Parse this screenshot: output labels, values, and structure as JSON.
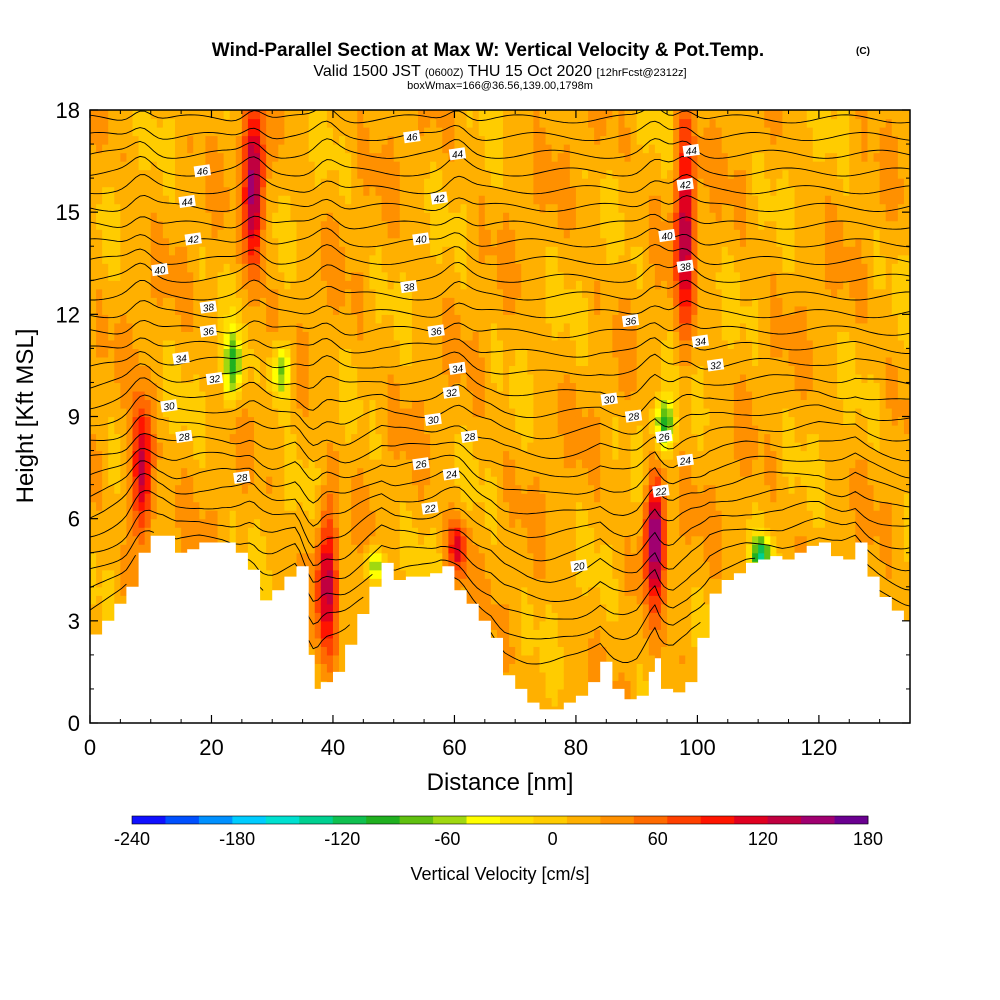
{
  "header": {
    "title": "Wind-Parallel Section at Max W: Vertical Velocity & Pot.Temp.",
    "copyright": "(C)",
    "valid_prefix": "Valid 1500 JST",
    "valid_utc": "(0600Z)",
    "valid_date": "THU 15 Oct 2020",
    "forecast": "[12hrFcst@2312z]",
    "boxinfo": "boxWmax=166@36.56,139.00,1798m"
  },
  "colors": {
    "terrain": "#ffffff",
    "contour": "#000000"
  },
  "chart_data": {
    "type": "heatmap",
    "xlabel": "Distance [nm]",
    "ylabel": "Height [Kft MSL]",
    "xlim": [
      0,
      135
    ],
    "ylim": [
      0,
      18
    ],
    "xticks": [
      0,
      20,
      40,
      60,
      80,
      100,
      120
    ],
    "yticks": [
      0,
      3,
      6,
      9,
      12,
      15,
      18
    ],
    "colorbar": {
      "label": "Vertical Velocity [cm/s]",
      "range": [
        -240,
        180
      ],
      "ticks": [
        -240,
        -180,
        -120,
        -60,
        0,
        60,
        120,
        180
      ],
      "colors": [
        "#1010ff",
        "#0050ff",
        "#0090ff",
        "#00ccff",
        "#00e0d0",
        "#00d090",
        "#10c050",
        "#20b020",
        "#60c010",
        "#a0d810",
        "#ffff00",
        "#ffe000",
        "#ffcc00",
        "#ffb000",
        "#ff9000",
        "#ff6a00",
        "#ff4000",
        "#ff1400",
        "#e00020",
        "#c00040",
        "#a00070",
        "#6a0090"
      ]
    },
    "terrain_profile": {
      "x": [
        0,
        2,
        4,
        6,
        8,
        10,
        12,
        14,
        16,
        18,
        20,
        22,
        24,
        26,
        28,
        30,
        32,
        34,
        36,
        37,
        38,
        40,
        42,
        44,
        46,
        48,
        50,
        52,
        54,
        56,
        58,
        60,
        62,
        64,
        66,
        68,
        70,
        72,
        74,
        76,
        78,
        80,
        82,
        84,
        86,
        88,
        90,
        92,
        93,
        94,
        96,
        98,
        100,
        102,
        104,
        106,
        108,
        110,
        112,
        114,
        116,
        118,
        120,
        122,
        124,
        126,
        128,
        130,
        132,
        134,
        135
      ],
      "height": [
        2.6,
        3.0,
        3.5,
        4.0,
        5.0,
        5.5,
        5.5,
        5.0,
        5.1,
        5.3,
        5.3,
        5.3,
        5.0,
        4.5,
        3.6,
        3.9,
        4.3,
        4.6,
        2.0,
        1.0,
        1.2,
        1.5,
        2.3,
        3.2,
        4.0,
        4.7,
        4.2,
        4.3,
        4.3,
        4.4,
        4.6,
        3.9,
        3.5,
        3.0,
        2.5,
        1.4,
        1.0,
        0.6,
        0.4,
        0.4,
        0.6,
        0.8,
        1.2,
        1.8,
        1.0,
        0.7,
        0.8,
        1.5,
        1.9,
        1.0,
        0.9,
        1.2,
        2.5,
        3.8,
        4.2,
        4.4,
        4.7,
        4.8,
        4.9,
        4.8,
        5.0,
        5.2,
        5.3,
        4.9,
        4.8,
        5.3,
        4.3,
        3.7,
        3.3,
        3.0,
        3.0
      ]
    },
    "updrafts": [
      {
        "x": 8.5,
        "ztop": 9.3,
        "zbot": 5.5,
        "peak_cms": 150
      },
      {
        "x": 27,
        "ztop": 18,
        "zbot": 13.5,
        "peak_cms": 170
      },
      {
        "x": 39,
        "ztop": 6.3,
        "zbot": 2.2,
        "peak_cms": 130
      },
      {
        "x": 60.5,
        "ztop": 6.0,
        "zbot": 4.3,
        "peak_cms": 110
      },
      {
        "x": 93,
        "ztop": 7.2,
        "zbot": 3.8,
        "peak_cms": 175
      },
      {
        "x": 98,
        "ztop": 18,
        "zbot": 11.5,
        "peak_cms": 130
      }
    ],
    "downdrafts": [
      {
        "x": 23.5,
        "ztop": 11.5,
        "zbot": 9.5,
        "peak_cms": -90
      },
      {
        "x": 31.5,
        "ztop": 11.2,
        "zbot": 9.5,
        "peak_cms": -80
      },
      {
        "x": 94.5,
        "ztop": 9.6,
        "zbot": 8.0,
        "peak_cms": -100
      },
      {
        "x": 110.5,
        "ztop": 5.5,
        "zbot": 4.4,
        "peak_cms": -110
      },
      {
        "x": 47,
        "ztop": 5.0,
        "zbot": 4.3,
        "peak_cms": -70
      }
    ],
    "contour_labels": [
      {
        "text": "46",
        "x": 53,
        "z": 17.2
      },
      {
        "text": "46",
        "x": 18.5,
        "z": 16.2
      },
      {
        "text": "44",
        "x": 60.5,
        "z": 16.7
      },
      {
        "text": "44",
        "x": 99,
        "z": 16.8
      },
      {
        "text": "44",
        "x": 16,
        "z": 15.3
      },
      {
        "text": "42",
        "x": 57.5,
        "z": 15.4
      },
      {
        "text": "42",
        "x": 98,
        "z": 15.8
      },
      {
        "text": "42",
        "x": 17,
        "z": 14.2
      },
      {
        "text": "40",
        "x": 54.5,
        "z": 14.2
      },
      {
        "text": "40",
        "x": 95,
        "z": 14.3
      },
      {
        "text": "40",
        "x": 11.5,
        "z": 13.3
      },
      {
        "text": "38",
        "x": 52.5,
        "z": 12.8
      },
      {
        "text": "38",
        "x": 98,
        "z": 13.4
      },
      {
        "text": "38",
        "x": 19.5,
        "z": 12.2
      },
      {
        "text": "36",
        "x": 57,
        "z": 11.5
      },
      {
        "text": "36",
        "x": 89,
        "z": 11.8
      },
      {
        "text": "36",
        "x": 19.5,
        "z": 11.5
      },
      {
        "text": "34",
        "x": 15,
        "z": 10.7
      },
      {
        "text": "34",
        "x": 60.5,
        "z": 10.4
      },
      {
        "text": "34",
        "x": 100.5,
        "z": 11.2
      },
      {
        "text": "32",
        "x": 20.5,
        "z": 10.1
      },
      {
        "text": "32",
        "x": 59.5,
        "z": 9.7
      },
      {
        "text": "32",
        "x": 103,
        "z": 10.5
      },
      {
        "text": "30",
        "x": 13,
        "z": 9.3
      },
      {
        "text": "30",
        "x": 56.5,
        "z": 8.9
      },
      {
        "text": "30",
        "x": 85.5,
        "z": 9.5
      },
      {
        "text": "28",
        "x": 15.5,
        "z": 8.4
      },
      {
        "text": "28",
        "x": 62.5,
        "z": 8.4
      },
      {
        "text": "28",
        "x": 89.5,
        "z": 9.0
      },
      {
        "text": "28",
        "x": 25,
        "z": 7.2
      },
      {
        "text": "26",
        "x": 54.5,
        "z": 7.6
      },
      {
        "text": "26",
        "x": 94.5,
        "z": 8.4
      },
      {
        "text": "24",
        "x": 59.5,
        "z": 7.3
      },
      {
        "text": "24",
        "x": 98,
        "z": 7.7
      },
      {
        "text": "22",
        "x": 56,
        "z": 6.3
      },
      {
        "text": "22",
        "x": 94,
        "z": 6.8
      },
      {
        "text": "20",
        "x": 80.5,
        "z": 4.6
      }
    ]
  }
}
